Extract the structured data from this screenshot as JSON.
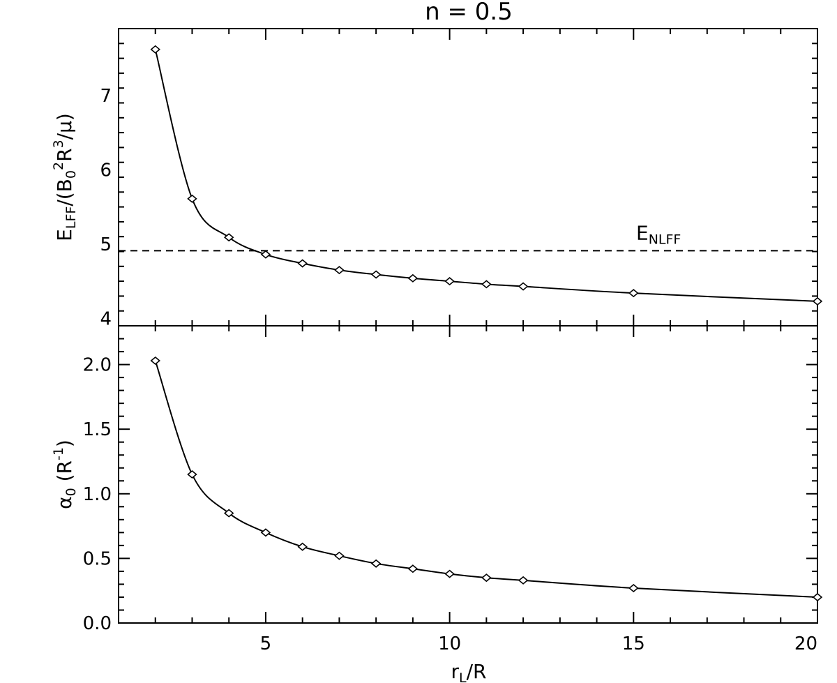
{
  "title": "n = 0.5",
  "chart_data": [
    {
      "type": "line",
      "panel": "top",
      "title": "n = 0.5",
      "xlabel": {
        "main": "r",
        "sub": "L",
        "rest": "/R"
      },
      "ylabel": {
        "E": "E",
        "E_sub": "LFF",
        "mid1": "/(B",
        "B_sub": "0",
        "B_sup": "2",
        "R": "R",
        "R_sup": "3",
        "end": "/μ)"
      },
      "xlim": [
        1,
        20
      ],
      "ylim": [
        3.9,
        7.9
      ],
      "yticks": [
        4,
        5,
        6,
        7
      ],
      "xticks": [
        5,
        10,
        15,
        20
      ],
      "x": [
        2,
        3,
        4,
        5,
        6,
        7,
        8,
        9,
        10,
        11,
        12,
        15,
        20
      ],
      "y": [
        7.62,
        5.61,
        5.09,
        4.86,
        4.74,
        4.65,
        4.59,
        4.54,
        4.5,
        4.46,
        4.43,
        4.34,
        4.23
      ],
      "reference_line": {
        "y": 4.91,
        "style": "dashed",
        "label_main": "E",
        "label_sub": "NLFF"
      },
      "marker": "diamond",
      "grid": false
    },
    {
      "type": "line",
      "panel": "bottom",
      "xlabel": {
        "main": "r",
        "sub": "L",
        "rest": "/R"
      },
      "ylabel": {
        "alpha": "α",
        "alpha_sub": "0",
        "unit": " (R",
        "unit_sup": "-1",
        "close": ")"
      },
      "xlim": [
        1,
        20
      ],
      "ylim": [
        0,
        2.3
      ],
      "yticks": [
        0.0,
        0.5,
        1.0,
        1.5,
        2.0
      ],
      "ytick_labels": [
        "0.0",
        "0.5",
        "1.0",
        "1.5",
        "2.0"
      ],
      "xticks": [
        5,
        10,
        15,
        20
      ],
      "xtick_labels": [
        "5",
        "10",
        "15",
        "20"
      ],
      "x": [
        2,
        3,
        4,
        5,
        6,
        7,
        8,
        9,
        10,
        11,
        12,
        15,
        20
      ],
      "y": [
        2.03,
        1.15,
        0.85,
        0.7,
        0.59,
        0.52,
        0.46,
        0.42,
        0.38,
        0.35,
        0.33,
        0.27,
        0.2
      ],
      "marker": "diamond",
      "grid": false
    }
  ]
}
